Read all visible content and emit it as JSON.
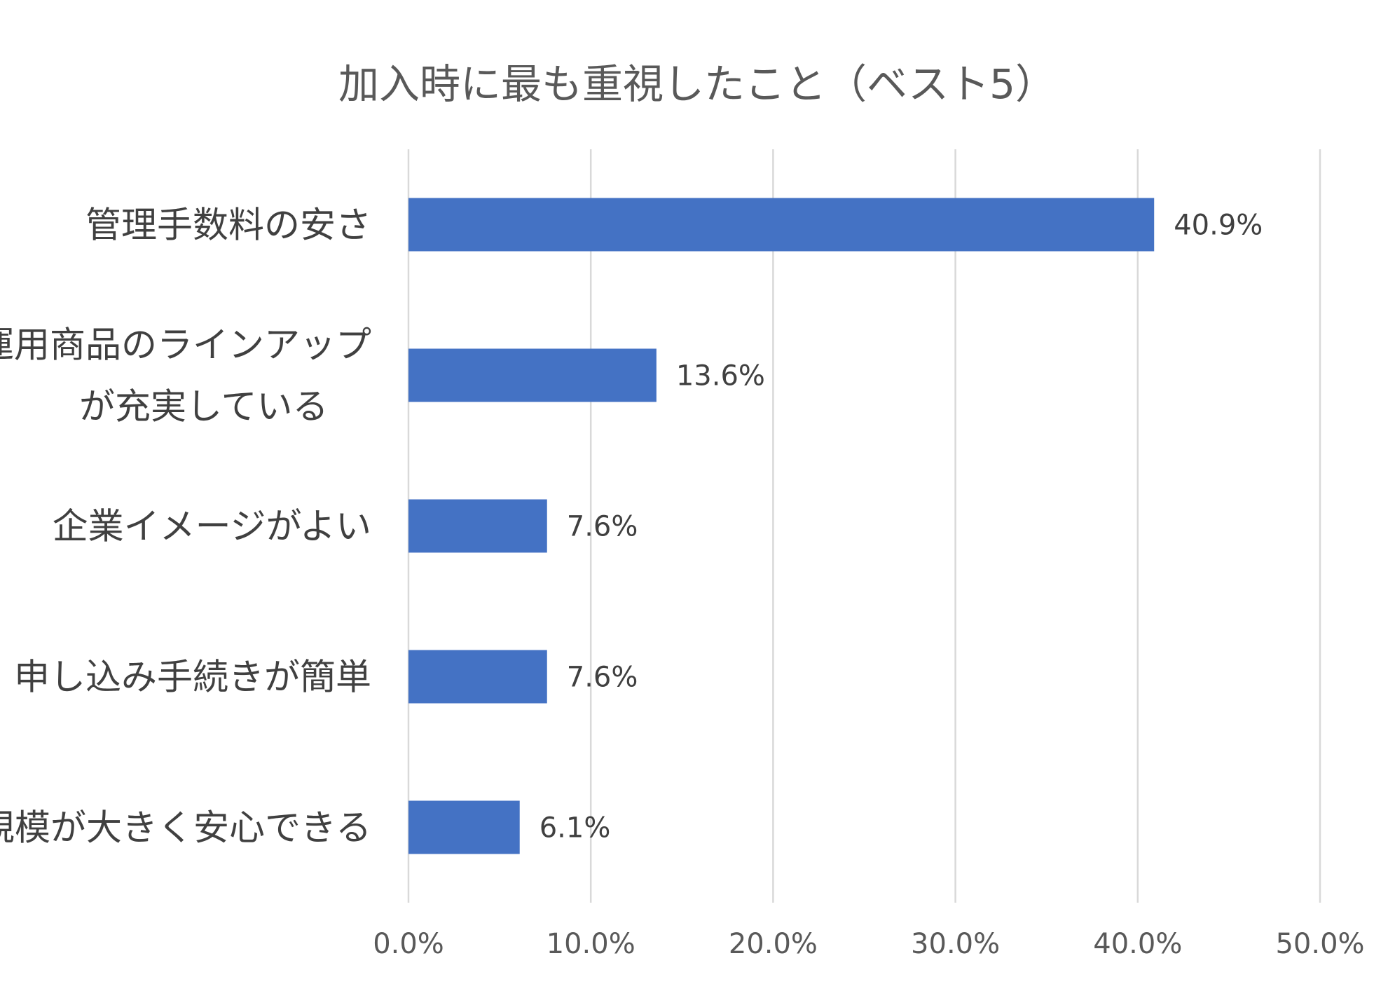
{
  "chart_data": {
    "type": "bar",
    "orientation": "horizontal",
    "title": "加入時に最も重視したこと（ベスト5）",
    "xlabel": "",
    "ylabel": "",
    "categories": [
      [
        "管理手数料の安さ"
      ],
      [
        "運用商品のラインアップ",
        "が充実している"
      ],
      [
        "企業イメージがよい"
      ],
      [
        "申し込み手続きが簡単"
      ],
      [
        "規模が大きく安心できる"
      ]
    ],
    "series": [
      {
        "values": [
          40.9,
          13.6,
          7.6,
          7.6,
          6.1
        ],
        "labels": [
          "40.9%",
          "13.6%",
          "7.6%",
          "7.6%",
          "6.1%"
        ]
      }
    ],
    "xlim": [
      0,
      50
    ],
    "ticks": [
      0,
      10,
      20,
      30,
      40,
      50
    ],
    "tick_labels": [
      "0.0%",
      "10.0%",
      "20.0%",
      "30.0%",
      "40.0%",
      "50.0%"
    ],
    "grid": true,
    "legend": "none",
    "bar_color": "#4472C4"
  }
}
